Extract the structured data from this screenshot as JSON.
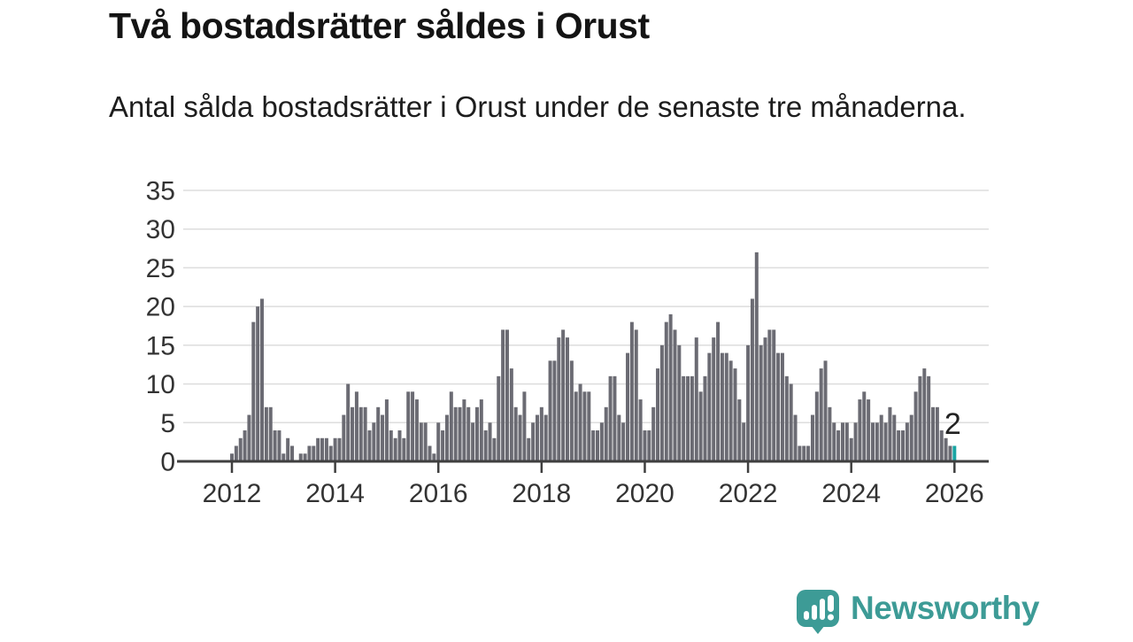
{
  "header": {
    "title": "Två bostadsrätter såldes i Orust",
    "subtitle": "Antal sålda bostadsrätter i Orust under de senaste tre månaderna."
  },
  "branding": {
    "name": "Newsworthy",
    "color": "#3d9b96",
    "icon": "newsworthy-pin-barchart"
  },
  "chart_data": {
    "type": "bar",
    "title": "Två bostadsrätter såldes i Orust",
    "description": "Antal sålda bostadsrätter per månad",
    "x_start": "2012-01",
    "x_end": "2026-01",
    "x_tick_labels": [
      "2012",
      "2014",
      "2016",
      "2018",
      "2020",
      "2022",
      "2024",
      "2026"
    ],
    "y_ticks": [
      0,
      5,
      10,
      15,
      20,
      25,
      30,
      35
    ],
    "ylim": [
      0,
      35
    ],
    "grid": true,
    "legend": false,
    "bar_color": "#6b6b73",
    "highlight_color": "#1aa5a3",
    "highlight_label": "2",
    "highlight_value": 2,
    "values": [
      1,
      2,
      3,
      4,
      6,
      18,
      20,
      21,
      7,
      7,
      4,
      4,
      1,
      3,
      2,
      0,
      1,
      1,
      2,
      2,
      3,
      3,
      3,
      2,
      3,
      3,
      6,
      10,
      7,
      9,
      7,
      7,
      4,
      5,
      7,
      6,
      8,
      4,
      3,
      4,
      3,
      9,
      9,
      8,
      5,
      5,
      2,
      1,
      5,
      4,
      6,
      9,
      7,
      7,
      8,
      7,
      5,
      7,
      8,
      4,
      5,
      3,
      11,
      17,
      17,
      12,
      7,
      6,
      9,
      3,
      5,
      6,
      7,
      6,
      13,
      13,
      16,
      17,
      16,
      13,
      9,
      10,
      9,
      9,
      4,
      4,
      5,
      7,
      11,
      11,
      6,
      5,
      14,
      18,
      17,
      8,
      4,
      4,
      7,
      12,
      15,
      18,
      19,
      17,
      15,
      11,
      11,
      11,
      16,
      9,
      11,
      14,
      16,
      18,
      14,
      14,
      13,
      12,
      8,
      5,
      15,
      21,
      27,
      15,
      16,
      17,
      17,
      14,
      14,
      11,
      10,
      6,
      2,
      2,
      2,
      6,
      9,
      12,
      13,
      7,
      5,
      4,
      5,
      5,
      3,
      5,
      8,
      9,
      8,
      5,
      5,
      6,
      5,
      7,
      6,
      4,
      4,
      5,
      6,
      9,
      11,
      12,
      11,
      7,
      7,
      4,
      3,
      2,
      2
    ]
  },
  "axis_style": {
    "label_color": "#333333",
    "grid_color": "#dddddd",
    "axis_color": "#3f3f3f",
    "annotation_color": "#222222"
  }
}
